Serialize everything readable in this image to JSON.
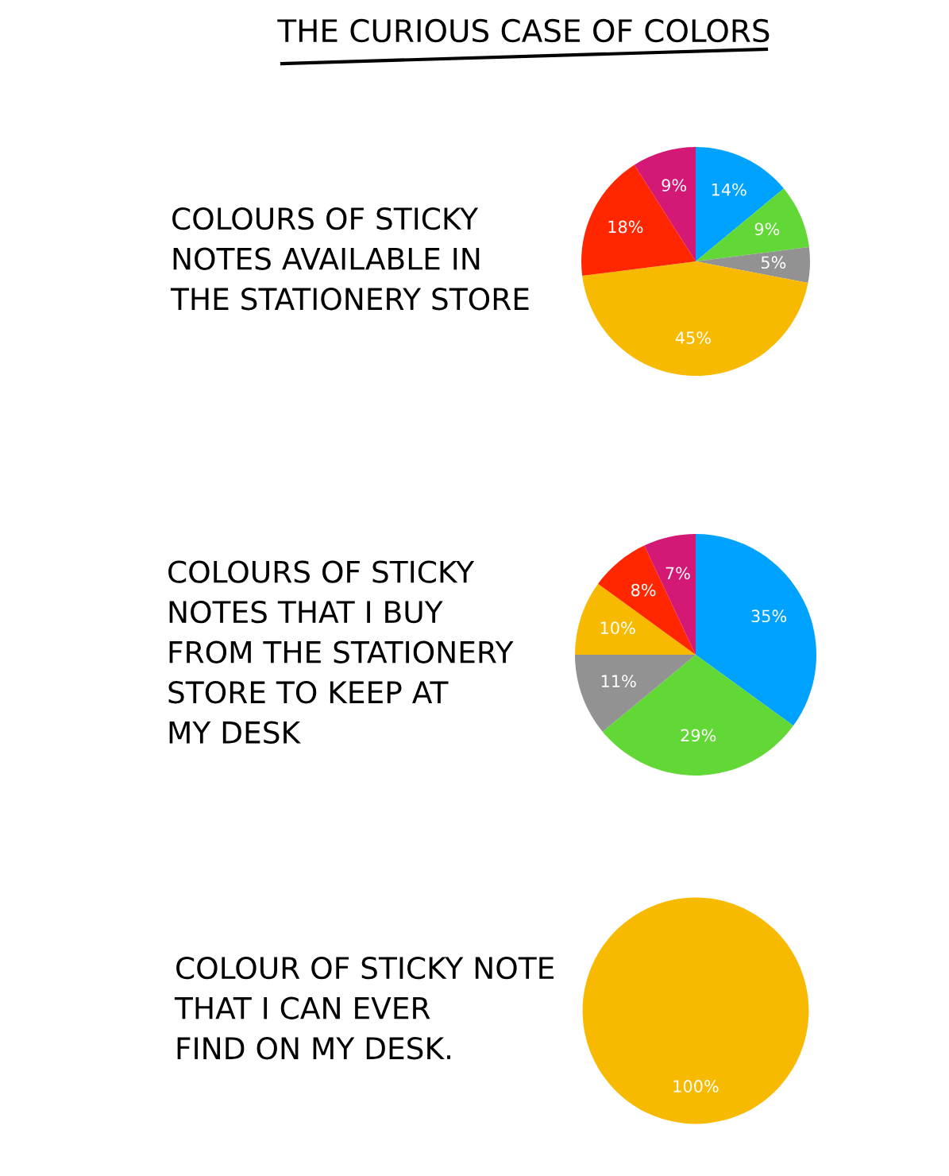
{
  "chart_data": [
    {
      "type": "pie",
      "title": "COLOURS OF STICKY\nNOTES AVAILABLE IN\nTHE STATIONERY STORE",
      "annotations": [
        "THE CURIOUS CASE OF COLORS"
      ],
      "categories": [
        null,
        null,
        null,
        null,
        null,
        null
      ],
      "values": [
        14,
        9,
        5,
        45,
        18,
        9
      ],
      "value_labels": [
        "14%",
        "9%",
        "5%",
        "45%",
        "18%",
        "9%"
      ],
      "colors": [
        "#00a2ff",
        "#61d836",
        "#929292",
        "#f8ba00",
        "#ff2600",
        "#d41876"
      ]
    },
    {
      "type": "pie",
      "title": "COLOURS OF STICKY\nNOTES THAT I BUY\nFROM THE STATIONERY\nSTORE TO KEEP AT\nMY DESK",
      "categories": [
        null,
        null,
        null,
        null,
        null,
        null
      ],
      "values": [
        35,
        29,
        11,
        10,
        8,
        7
      ],
      "value_labels": [
        "35%",
        "29%",
        "11%",
        "10%",
        "8%",
        "7%"
      ],
      "colors": [
        "#00a2ff",
        "#61d836",
        "#929292",
        "#f8ba00",
        "#ff2600",
        "#d41876"
      ]
    },
    {
      "type": "pie",
      "title": "COLOUR OF STICKY NOTE\nTHAT I CAN EVER\nFIND ON MY DESK.",
      "categories": [
        null
      ],
      "values": [
        100
      ],
      "value_labels": [
        "100%"
      ],
      "colors": [
        "#f8ba00"
      ]
    }
  ]
}
